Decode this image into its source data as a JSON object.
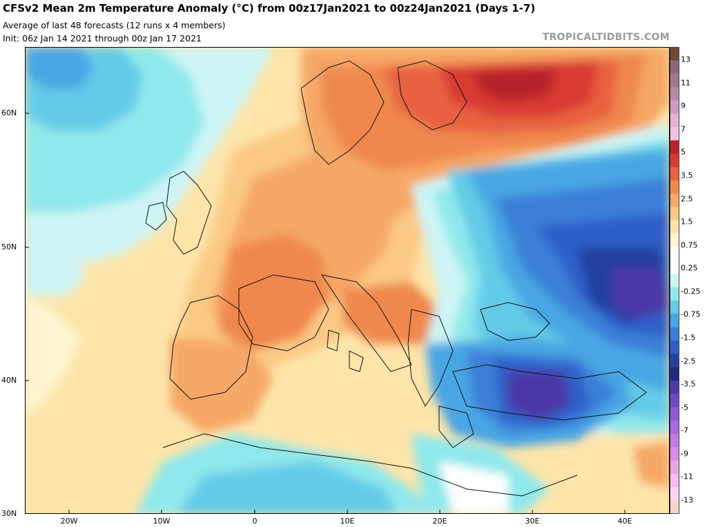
{
  "header": {
    "title": "CFSv2 Mean 2m Temperature Anomaly (°C) from 00z17Jan2021 to 00z24Jan2021 (Days 1-7)",
    "subtitle": "Average of last 48 forecasts (12 runs x 4 members)",
    "init": "Init: 06z Jan 14 2021 through 00z Jan 17 2021",
    "credit": "TROPICALTIDBITS.COM"
  },
  "map": {
    "lat_labels": [
      {
        "label": "60N",
        "lat": 60
      },
      {
        "label": "50N",
        "lat": 50
      },
      {
        "label": "40N",
        "lat": 40
      },
      {
        "label": "30N",
        "lat": 30
      }
    ],
    "lon_labels": [
      {
        "label": "20W",
        "lon": -20
      },
      {
        "label": "10W",
        "lon": -10
      },
      {
        "label": "0",
        "lon": 0
      },
      {
        "label": "10E",
        "lon": 10
      },
      {
        "label": "20E",
        "lon": 20
      },
      {
        "label": "30E",
        "lon": 30
      },
      {
        "label": "40E",
        "lon": 40
      }
    ],
    "extent": {
      "lon_min": -25,
      "lon_max": 45,
      "lat_min": 30,
      "lat_max": 65
    }
  },
  "colorbar": {
    "labels": [
      "13",
      "11",
      "9",
      "7",
      "5",
      "3.5",
      "2.5",
      "1.5",
      "0.75",
      "0.25",
      "-0.25",
      "-0.75",
      "-1.5",
      "-2.5",
      "-3.5",
      "-5",
      "-7",
      "-9",
      "-11",
      "-13"
    ],
    "colors": [
      "#6e4a34",
      "#8a6a7a",
      "#9c7a8e",
      "#b48aa6",
      "#cc9cc0",
      "#e7b2d6",
      "#f2c4e4",
      "#b8232a",
      "#d83a30",
      "#e8613f",
      "#f0884e",
      "#f6a866",
      "#fbc985",
      "#fde5aa",
      "#fff5d2",
      "#ffffff",
      "#ffffff",
      "#cdf5f5",
      "#8fe8ec",
      "#64cbe8",
      "#4aa6e4",
      "#3a7fd8",
      "#2d5fc8",
      "#24409e",
      "#24287e",
      "#4b39a6",
      "#6a4cc0",
      "#8c5cd6",
      "#a86ae0",
      "#c57ae6",
      "#da8ce8",
      "#e8a4ea",
      "#f2c0ee",
      "#f8d8f2",
      "#f6d4c6"
    ]
  }
}
